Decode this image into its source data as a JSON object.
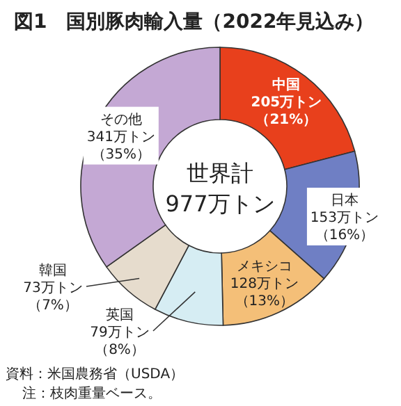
{
  "chart_data": {
    "type": "donut",
    "title": "図1　国別豚肉輸入量（2022年見込み）",
    "categories": [
      "中国",
      "日本",
      "メキシコ",
      "英国",
      "韓国",
      "その他"
    ],
    "values": [
      205,
      153,
      128,
      79,
      73,
      341
    ],
    "value_labels": [
      "205万トン（21%）",
      "153万トン（16%）",
      "128万トン（13%）",
      "79万トン（8%）",
      "73万トン（7%）",
      "341万トン（35%）"
    ],
    "colors": [
      "#e8401c",
      "#6f7fc4",
      "#f4bf78",
      "#d6edf3",
      "#e6dccd",
      "#c4a8d4"
    ],
    "annotations": [
      "世界計",
      "977万トン",
      "資料：米国農務省（USDA）",
      "注：枝肉重量ベース。"
    ]
  }
}
